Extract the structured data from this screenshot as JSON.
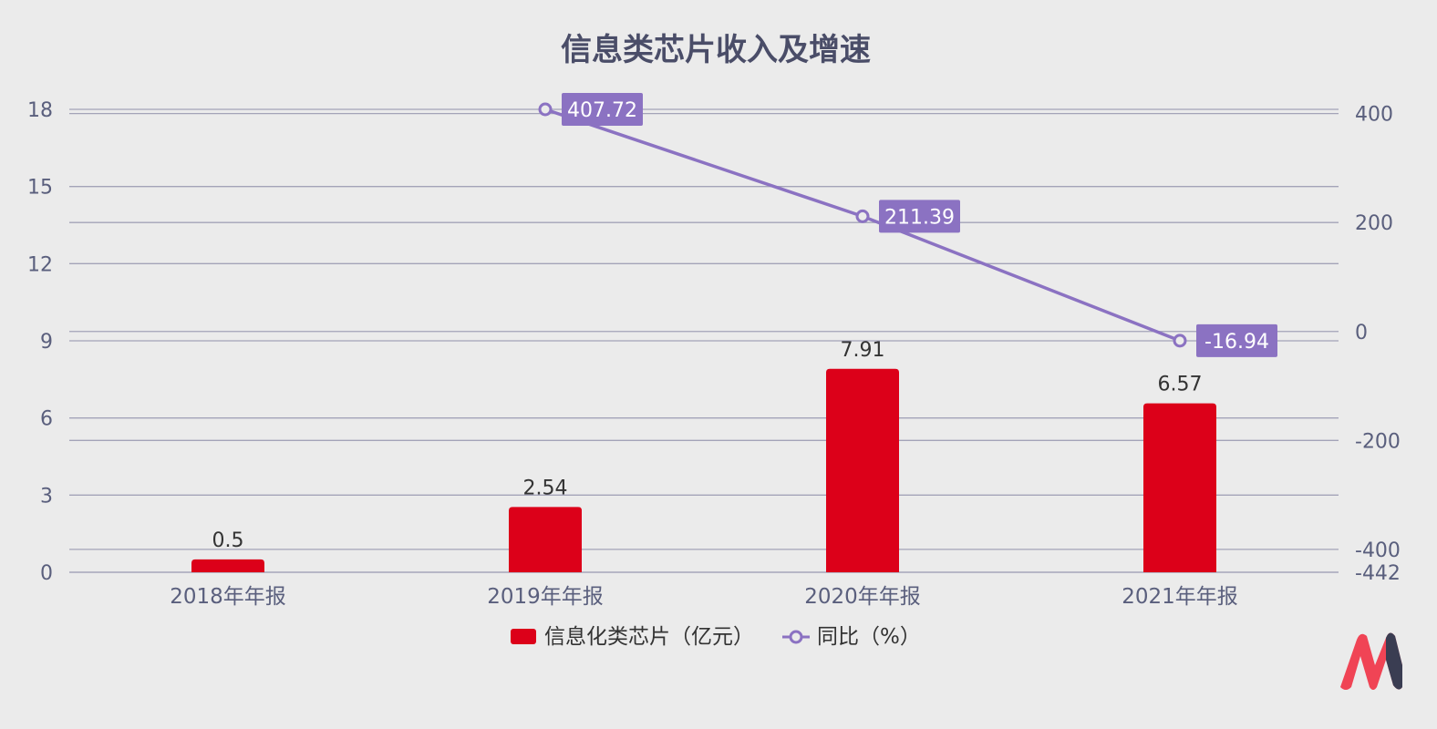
{
  "chart_data": {
    "type": "bar",
    "title": "信息类芯片收入及增速",
    "categories": [
      "2018年年报",
      "2019年年报",
      "2020年年报",
      "2021年年报"
    ],
    "series": [
      {
        "name": "信息化类芯片（亿元）",
        "type": "bar",
        "axis": "left",
        "values": [
          0.5,
          2.54,
          7.91,
          6.57
        ]
      },
      {
        "name": "同比（%）",
        "type": "line",
        "axis": "right",
        "values": [
          null,
          407.72,
          211.39,
          -16.94
        ]
      }
    ],
    "left_axis": {
      "ticks": [
        0,
        3,
        6,
        9,
        12,
        15,
        18
      ],
      "ylim": [
        0,
        18
      ]
    },
    "right_axis": {
      "ticks": [
        -442,
        -400,
        -200,
        0,
        200,
        400
      ],
      "ylim": [
        -442,
        407.72
      ]
    },
    "grid": true,
    "legend_position": "bottom",
    "colors": {
      "bar": "#dc0019",
      "line": "#8b72c2",
      "label_bg": "#8b72c2",
      "text": "#5a5f7d",
      "title": "#4a4d68",
      "grid": "#a3a3b8"
    }
  },
  "logo": {
    "name": "logo-icon"
  }
}
